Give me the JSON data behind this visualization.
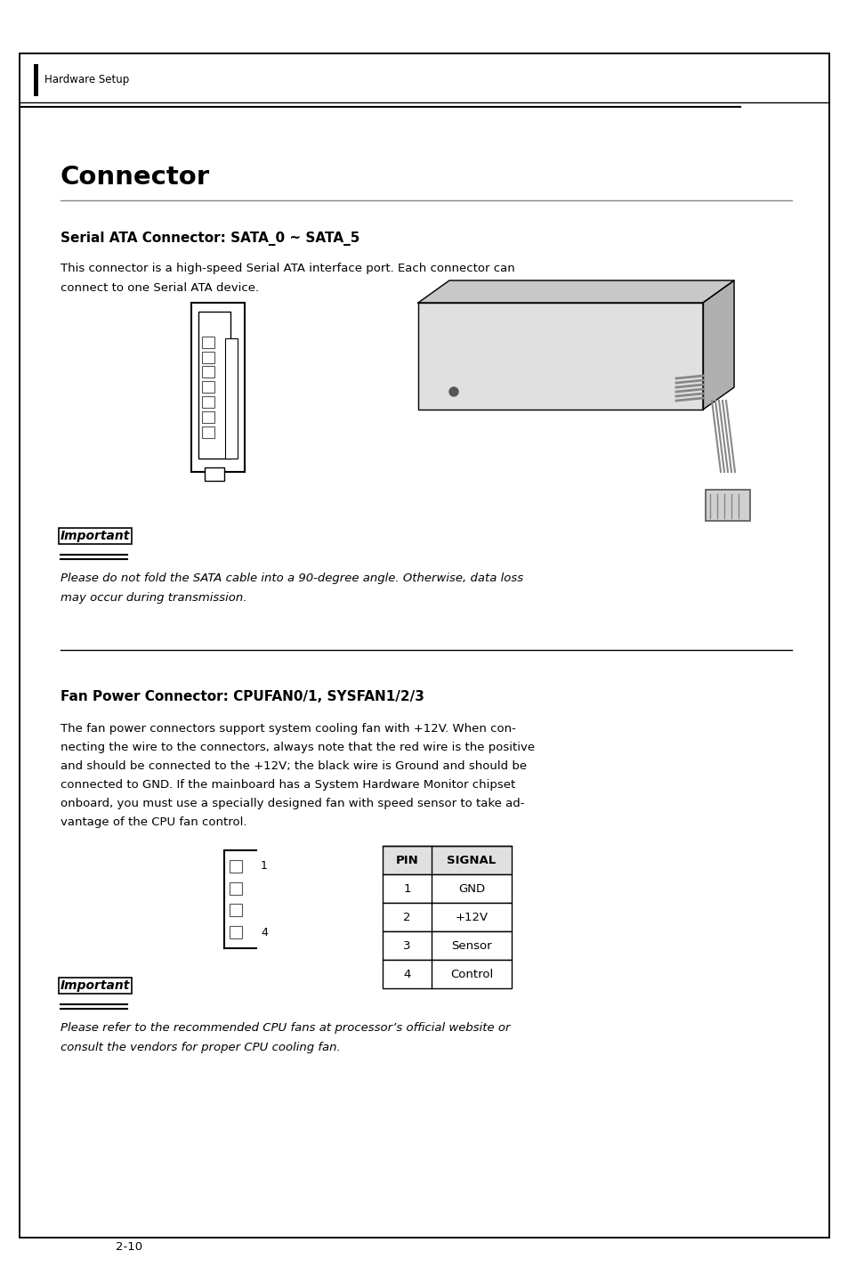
{
  "page_background": "#ffffff",
  "border_color": "#000000",
  "page_width": 9.54,
  "page_height": 14.32,
  "header_text": "Hardware Setup",
  "title1": "Connector",
  "section1_heading": "Serial ATA Connector: SATA_0 ~ SATA_5",
  "section1_body_line1": "This connector is a high-speed Serial ATA interface port. Each connector can",
  "section1_body_line2": "connect to one Serial ATA device.",
  "important1_label": "Important",
  "important1_text_line1": "Please do not fold the SATA cable into a 90-degree angle. Otherwise, data loss",
  "important1_text_line2": "may occur during transmission.",
  "section2_heading": "Fan Power Connector: CPUFAN0/1, SYSFAN1/2/3",
  "section2_body": "The fan power connectors support system cooling fan with +12V. When con-\nnecting the wire to the connectors, always note that the red wire is the positive\nand should be connected to the +12V; the black wire is Ground and should be\nconnected to GND. If the mainboard has a System Hardware Monitor chipset\nonboard, you must use a specially designed fan with speed sensor to take ad-\nvantage of the CPU fan control.",
  "table_headers": [
    "PIN",
    "SIGNAL"
  ],
  "table_rows": [
    [
      "1",
      "GND"
    ],
    [
      "2",
      "+12V"
    ],
    [
      "3",
      "Sensor"
    ],
    [
      "4",
      "Control"
    ]
  ],
  "important2_label": "Important",
  "important2_text_line1": "Please refer to the recommended CPU fans at processor’s official website or",
  "important2_text_line2": "consult the vendors for proper CPU cooling fan.",
  "footer_text": "2-10",
  "line_color": "#000000",
  "text_color": "#000000",
  "gray_line_color": "#aaaaaa"
}
